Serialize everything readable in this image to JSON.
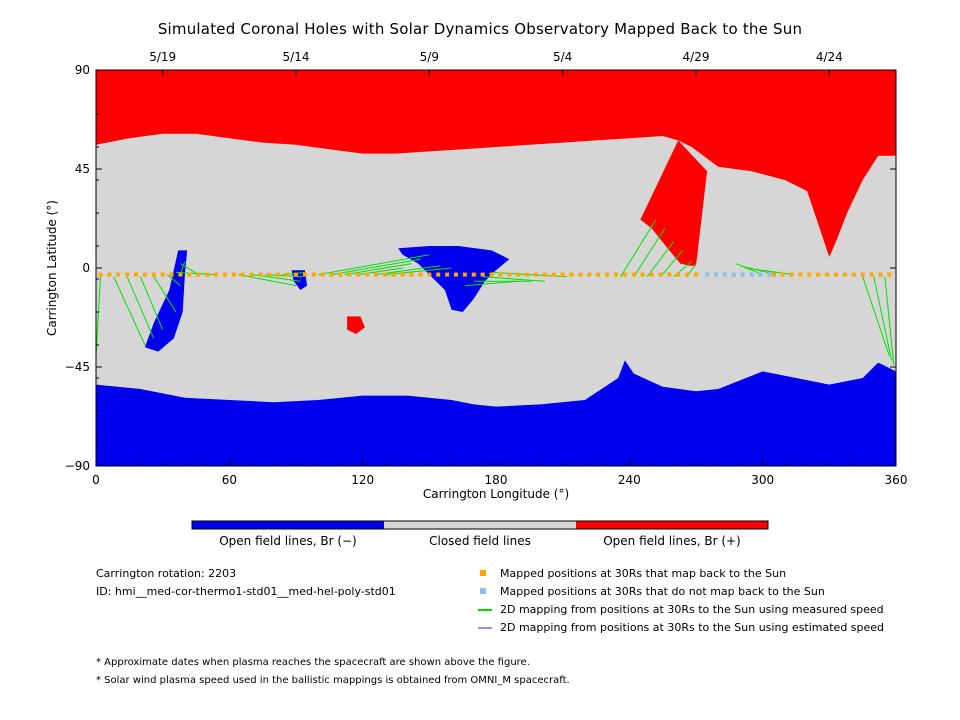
{
  "chart_data": {
    "type": "map",
    "title": "Simulated Coronal Holes with Solar Dynamics Observatory Mapped Back to the Sun",
    "xlabel": "Carrington Longitude (°)",
    "ylabel": "Carrington Latitude (°)",
    "xlim": [
      0,
      360
    ],
    "ylim": [
      -90,
      90
    ],
    "x_ticks": [
      0,
      60,
      120,
      180,
      240,
      300,
      360
    ],
    "y_ticks": [
      90,
      45,
      0,
      -45,
      -90
    ],
    "y_tick_labels": [
      "90",
      "45",
      "0",
      "−45",
      "−90"
    ],
    "top_axis_dates": [
      {
        "label": "5/19",
        "lon": 30
      },
      {
        "label": "5/14",
        "lon": 90
      },
      {
        "label": "5/9",
        "lon": 150
      },
      {
        "label": "5/4",
        "lon": 210
      },
      {
        "label": "4/29",
        "lon": 270
      },
      {
        "label": "4/24",
        "lon": 330
      }
    ],
    "colors": {
      "open_negative": "#0000ee",
      "closed": "#d6d6d6",
      "open_positive": "#ff0000",
      "mapped": "#ffa500",
      "not_mapped": "#87bff0",
      "measured_line": "#00e000",
      "estimated_line": "#b080f0"
    },
    "polar_boundaries": {
      "north": [
        [
          0,
          56
        ],
        [
          15,
          59
        ],
        [
          30,
          61
        ],
        [
          45,
          61
        ],
        [
          60,
          59
        ],
        [
          75,
          57
        ],
        [
          90,
          56
        ],
        [
          105,
          54
        ],
        [
          120,
          52
        ],
        [
          135,
          52
        ],
        [
          150,
          53
        ],
        [
          165,
          54
        ],
        [
          180,
          55
        ],
        [
          195,
          56
        ],
        [
          210,
          57
        ],
        [
          225,
          58
        ],
        [
          240,
          59
        ],
        [
          255,
          60
        ],
        [
          262,
          58
        ],
        [
          268,
          55
        ],
        [
          280,
          46
        ],
        [
          295,
          44
        ],
        [
          310,
          40
        ],
        [
          320,
          35
        ],
        [
          325,
          20
        ],
        [
          330,
          5
        ],
        [
          333,
          12
        ],
        [
          338,
          25
        ],
        [
          345,
          40
        ],
        [
          352,
          51
        ],
        [
          360,
          51
        ]
      ],
      "south": [
        [
          0,
          -53
        ],
        [
          20,
          -55
        ],
        [
          40,
          -59
        ],
        [
          60,
          -60
        ],
        [
          80,
          -61
        ],
        [
          100,
          -60
        ],
        [
          120,
          -58
        ],
        [
          140,
          -58
        ],
        [
          160,
          -60
        ],
        [
          170,
          -62
        ],
        [
          180,
          -63
        ],
        [
          200,
          -62
        ],
        [
          220,
          -60
        ],
        [
          235,
          -50
        ],
        [
          238,
          -42
        ],
        [
          242,
          -48
        ],
        [
          255,
          -54
        ],
        [
          270,
          -56
        ],
        [
          280,
          -55
        ],
        [
          290,
          -51
        ],
        [
          300,
          -47
        ],
        [
          315,
          -50
        ],
        [
          330,
          -53
        ],
        [
          345,
          -50
        ],
        [
          352,
          -43
        ],
        [
          360,
          -47
        ]
      ]
    },
    "red_tongue": [
      [
        245,
        22
      ],
      [
        250,
        18
      ],
      [
        258,
        8
      ],
      [
        263,
        2
      ],
      [
        267,
        1
      ],
      [
        270,
        1
      ],
      [
        272,
        18
      ],
      [
        275,
        44
      ],
      [
        262,
        58
      ]
    ],
    "coronal_holes_negative": [
      [
        [
          37,
          8
        ],
        [
          41,
          8
        ],
        [
          40,
          -3
        ],
        [
          39,
          -20
        ],
        [
          35,
          -32
        ],
        [
          28,
          -38
        ],
        [
          22,
          -36
        ],
        [
          26,
          -25
        ],
        [
          33,
          -10
        ]
      ],
      [
        [
          136,
          9
        ],
        [
          150,
          10
        ],
        [
          163,
          10
        ],
        [
          178,
          8
        ],
        [
          186,
          4
        ],
        [
          180,
          -1
        ],
        [
          175,
          -6
        ],
        [
          170,
          -14
        ],
        [
          165,
          -20
        ],
        [
          160,
          -19
        ],
        [
          157,
          -10
        ],
        [
          150,
          -3
        ],
        [
          145,
          2
        ],
        [
          138,
          6
        ]
      ],
      [
        [
          88,
          -1
        ],
        [
          94,
          -1
        ],
        [
          95,
          -8
        ],
        [
          92,
          -10
        ],
        [
          89,
          -6
        ]
      ]
    ],
    "coronal_holes_positive": [
      [
        [
          113,
          -22
        ],
        [
          119,
          -22
        ],
        [
          121,
          -27
        ],
        [
          117,
          -30
        ],
        [
          113,
          -28
        ]
      ]
    ],
    "mapped_positions": {
      "lat": -3,
      "lon": [
        2,
        6,
        10,
        14,
        18,
        22,
        26,
        30,
        34,
        38,
        42,
        46,
        50,
        54,
        58,
        62,
        66,
        70,
        74,
        78,
        82,
        86,
        90,
        94,
        98,
        102,
        106,
        110,
        114,
        118,
        122,
        126,
        130,
        134,
        138,
        142,
        146,
        150,
        154,
        158,
        162,
        166,
        170,
        174,
        178,
        182,
        186,
        190,
        194,
        198,
        202,
        206,
        210,
        214,
        218,
        222,
        226,
        230,
        234,
        238,
        242,
        246,
        250,
        254,
        258,
        262,
        266,
        270,
        305,
        309,
        313,
        317,
        321,
        325,
        329,
        333,
        337,
        341,
        345,
        349,
        353,
        357
      ],
      "not_mapped_lon": [
        275,
        279,
        283,
        287,
        291,
        295,
        299,
        303
      ]
    },
    "mapping_lines": [
      [
        [
          8,
          -4
        ],
        [
          22,
          -35
        ]
      ],
      [
        [
          14,
          -4
        ],
        [
          26,
          -32
        ]
      ],
      [
        [
          20,
          -4
        ],
        [
          30,
          -28
        ]
      ],
      [
        [
          26,
          -4
        ],
        [
          36,
          -20
        ]
      ],
      [
        [
          32,
          -3
        ],
        [
          38,
          -8
        ]
      ],
      [
        [
          38,
          -3
        ],
        [
          40,
          3
        ]
      ],
      [
        [
          46,
          -3
        ],
        [
          38,
          2
        ]
      ],
      [
        [
          54,
          -3
        ],
        [
          36,
          -2
        ]
      ],
      [
        [
          64,
          -3
        ],
        [
          90,
          -8
        ]
      ],
      [
        [
          70,
          -3
        ],
        [
          92,
          -6
        ]
      ],
      [
        [
          76,
          -3
        ],
        [
          93,
          -4
        ]
      ],
      [
        [
          84,
          -3
        ],
        [
          94,
          -2
        ]
      ],
      [
        [
          100,
          -3
        ],
        [
          150,
          6
        ]
      ],
      [
        [
          106,
          -3
        ],
        [
          146,
          4
        ]
      ],
      [
        [
          112,
          -3
        ],
        [
          142,
          2
        ]
      ],
      [
        [
          118,
          -3
        ],
        [
          138,
          0
        ]
      ],
      [
        [
          126,
          -3
        ],
        [
          155,
          1
        ]
      ],
      [
        [
          130,
          -3
        ],
        [
          160,
          0
        ]
      ],
      [
        [
          190,
          -6
        ],
        [
          166,
          -8
        ]
      ],
      [
        [
          196,
          -6
        ],
        [
          170,
          -6
        ]
      ],
      [
        [
          202,
          -6
        ],
        [
          174,
          -4
        ]
      ],
      [
        [
          212,
          -4
        ],
        [
          178,
          -2
        ]
      ],
      [
        [
          236,
          -4
        ],
        [
          252,
          22
        ]
      ],
      [
        [
          242,
          -4
        ],
        [
          256,
          18
        ]
      ],
      [
        [
          248,
          -4
        ],
        [
          260,
          12
        ]
      ],
      [
        [
          254,
          -4
        ],
        [
          264,
          8
        ]
      ],
      [
        [
          260,
          -4
        ],
        [
          268,
          3
        ]
      ],
      [
        [
          266,
          -4
        ],
        [
          270,
          2
        ]
      ],
      [
        [
          300,
          -3
        ],
        [
          288,
          2
        ]
      ],
      [
        [
          306,
          -3
        ],
        [
          290,
          1
        ]
      ],
      [
        [
          314,
          -3
        ],
        [
          292,
          0
        ]
      ],
      [
        [
          345,
          -4
        ],
        [
          357,
          -40
        ]
      ],
      [
        [
          350,
          -4
        ],
        [
          358,
          -42
        ]
      ],
      [
        [
          355,
          -4
        ],
        [
          359,
          -44
        ]
      ],
      [
        [
          2,
          -4
        ],
        [
          0,
          -40
        ]
      ]
    ],
    "colorbar": [
      "Open field lines, Br (−)",
      "Closed field lines",
      "Open field lines, Br (+)"
    ]
  },
  "info": {
    "rotation": "Carrington rotation: 2203",
    "id": "ID: hmi__med-cor-thermo1-std01__med-hel-poly-std01"
  },
  "legend": [
    "Mapped positions at 30Rs that map back to the Sun",
    "Mapped positions at 30Rs that do not map back to the Sun",
    "2D mapping from positions at 30Rs to the Sun using measured speed",
    "2D mapping from positions at 30Rs to the Sun using estimated speed"
  ],
  "notes": [
    "* Approximate dates when plasma reaches the spacecraft are shown above the figure.",
    "* Solar wind plasma speed used in the ballistic mappings is obtained from OMNI_M spacecraft."
  ]
}
